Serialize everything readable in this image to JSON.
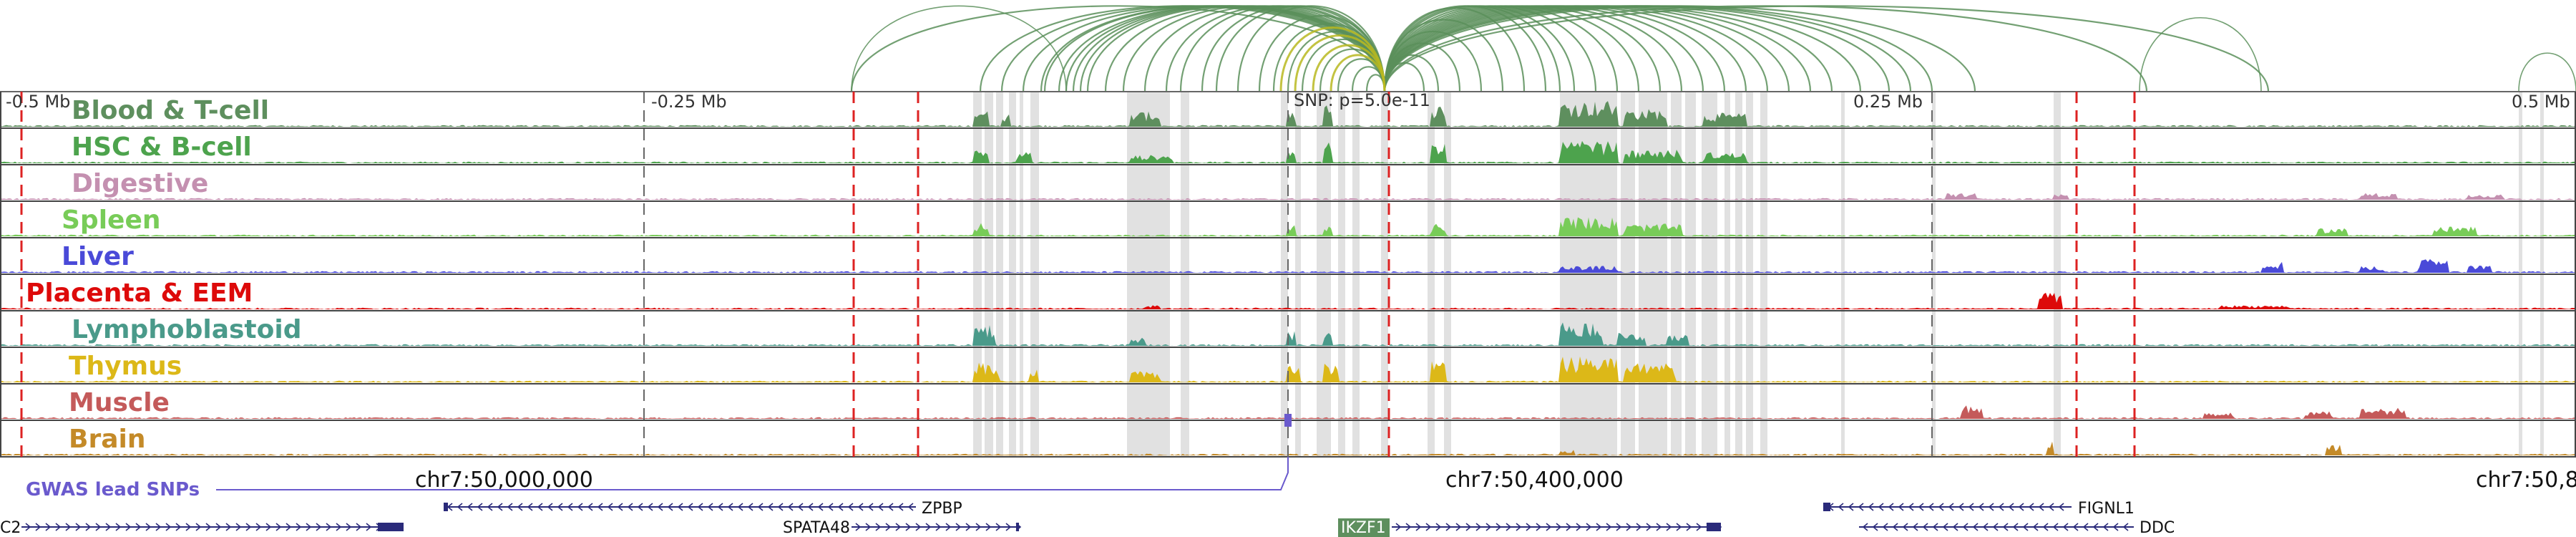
{
  "tracks": [
    {
      "name": "Blood & T-cell",
      "color": "#5e8f5e"
    },
    {
      "name": "HSC & B-cell",
      "color": "#4da34d"
    },
    {
      "name": "Digestive",
      "color": "#c490b0"
    },
    {
      "name": "Spleen",
      "color": "#78cc58"
    },
    {
      "name": "Liver",
      "color": "#4a4ad8"
    },
    {
      "name": "Placenta & EEM",
      "color": "#dd0a0a"
    },
    {
      "name": "Lymphoblastoid",
      "color": "#4a9a8a"
    },
    {
      "name": "Thymus",
      "color": "#dcb818"
    },
    {
      "name": "Muscle",
      "color": "#c45a5a"
    },
    {
      "name": "Brain",
      "color": "#c48a28"
    }
  ],
  "scale_labels": [
    "-0.5 Mb",
    "-0.25 Mb",
    "0.25 Mb",
    "0.5 Mb"
  ],
  "snp_label": "SNP: p=5.0e-11",
  "coordinates": [
    "chr7:50,000,000",
    "chr7:50,400,000",
    "chr7:50,8"
  ],
  "gwas_label": "GWAS lead SNPs",
  "genes": [
    {
      "name": "ZPBP",
      "strand": "-",
      "highlight": false
    },
    {
      "name": "SPATA48",
      "strand": "+",
      "highlight": false
    },
    {
      "name": "IKZF1",
      "strand": "+",
      "highlight": true
    },
    {
      "name": "FIGNL1",
      "strand": "-",
      "highlight": false
    },
    {
      "name": "DDC",
      "strand": "-",
      "highlight": false
    },
    {
      "name": "C2",
      "strand": "+",
      "highlight": false
    }
  ],
  "colors": {
    "loop": "#5a8f5a",
    "loop_highlight": "#b8b820",
    "snp_dashed_line": "#dd2222",
    "scale_dashed_line": "#666666",
    "highlight_band": "#dcdcdc",
    "gwas": "#6a5acd",
    "gene": "#2a2a7a",
    "ikzf1_bg": "#5e8f5e"
  }
}
